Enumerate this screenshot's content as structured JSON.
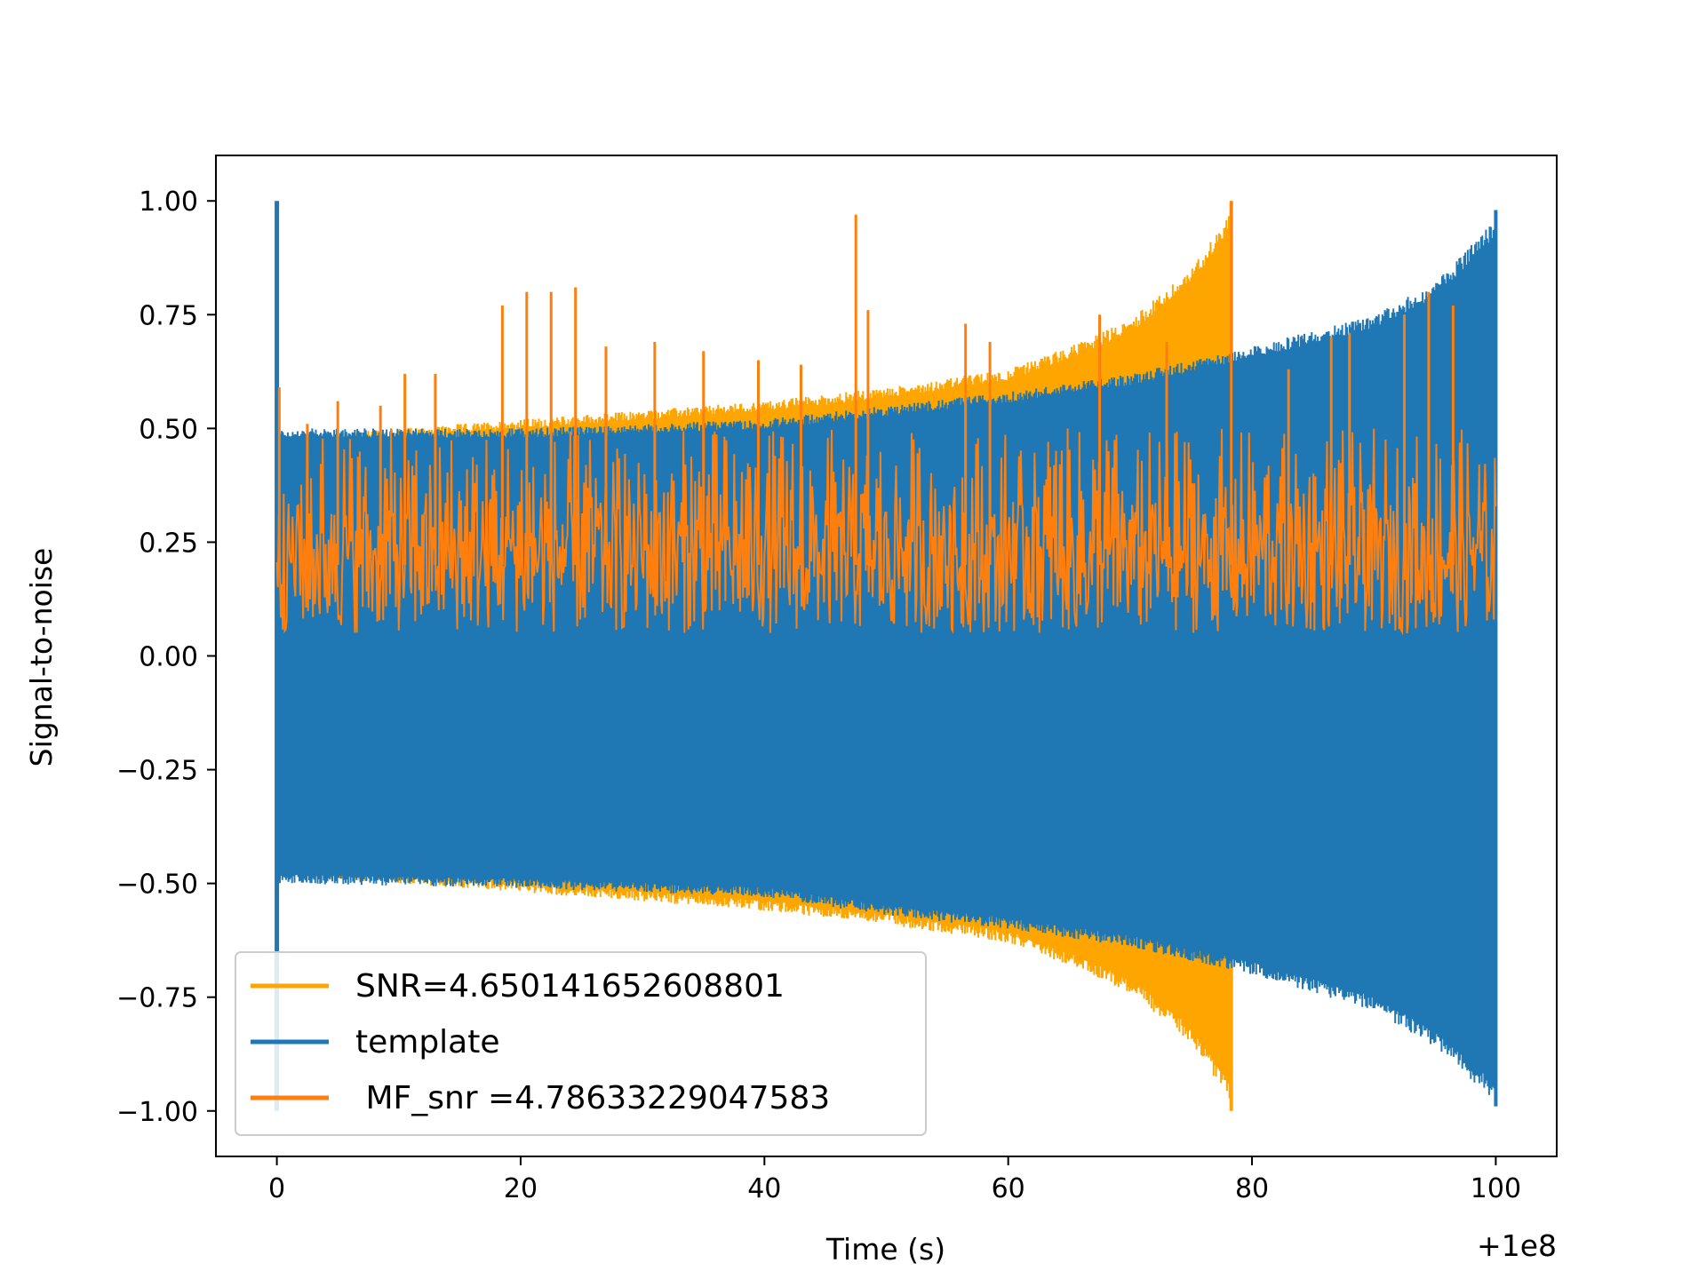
{
  "chart_data": {
    "type": "line",
    "title": "",
    "xlabel": "Time (s)",
    "ylabel": "Signal-to-noise",
    "x_offset_label": "+1e8",
    "xlim": [
      -5,
      105
    ],
    "ylim": [
      -1.1,
      1.1
    ],
    "xticks": [
      0,
      20,
      40,
      60,
      80,
      100
    ],
    "xtick_labels": [
      "0",
      "20",
      "40",
      "60",
      "80",
      "100"
    ],
    "yticks": [
      1.0,
      0.75,
      0.5,
      0.25,
      0.0,
      -0.25,
      -0.5,
      -0.75,
      -1.0
    ],
    "ytick_labels": [
      "1.00",
      "0.75",
      "0.50",
      "0.25",
      "0.00",
      "−0.25",
      "−0.50",
      "−0.75",
      "−1.00"
    ],
    "grid": false,
    "legend_position": "lower-left",
    "series": [
      {
        "name": "SNR=4.650141652608801",
        "color": "#ffa500",
        "style": "dense-oscillation",
        "envelope_upper": [
          [
            0,
            0.48
          ],
          [
            10,
            0.5
          ],
          [
            20,
            0.52
          ],
          [
            30,
            0.54
          ],
          [
            40,
            0.56
          ],
          [
            50,
            0.59
          ],
          [
            60,
            0.63
          ],
          [
            65,
            0.68
          ],
          [
            70,
            0.74
          ],
          [
            75,
            0.85
          ],
          [
            78.3,
            0.98
          ]
        ],
        "envelope_lower": [
          [
            0,
            -0.48
          ],
          [
            10,
            -0.5
          ],
          [
            20,
            -0.52
          ],
          [
            30,
            -0.54
          ],
          [
            40,
            -0.56
          ],
          [
            50,
            -0.59
          ],
          [
            60,
            -0.63
          ],
          [
            65,
            -0.68
          ],
          [
            70,
            -0.74
          ],
          [
            75,
            -0.85
          ],
          [
            78.3,
            -0.98
          ]
        ]
      },
      {
        "name": "template",
        "color": "#1f77b4",
        "style": "dense-oscillation",
        "envelope_upper": [
          [
            0,
            0.5
          ],
          [
            20,
            0.5
          ],
          [
            40,
            0.52
          ],
          [
            50,
            0.55
          ],
          [
            60,
            0.58
          ],
          [
            70,
            0.62
          ],
          [
            80,
            0.68
          ],
          [
            90,
            0.75
          ],
          [
            95,
            0.82
          ],
          [
            100,
            0.96
          ]
        ],
        "envelope_lower": [
          [
            0,
            -0.5
          ],
          [
            20,
            -0.51
          ],
          [
            40,
            -0.53
          ],
          [
            50,
            -0.57
          ],
          [
            60,
            -0.6
          ],
          [
            70,
            -0.64
          ],
          [
            80,
            -0.7
          ],
          [
            90,
            -0.78
          ],
          [
            95,
            -0.86
          ],
          [
            100,
            -0.98
          ]
        ]
      },
      {
        "name": " MF_snr =4.78633229047583",
        "color": "#ff7f0e",
        "style": "noise-band",
        "band_range": [
          0.05,
          0.5
        ],
        "peaks": [
          [
            0.2,
            0.59
          ],
          [
            2.5,
            0.51
          ],
          [
            5,
            0.56
          ],
          [
            8.5,
            0.55
          ],
          [
            10.5,
            0.62
          ],
          [
            13,
            0.62
          ],
          [
            18.5,
            0.77
          ],
          [
            20.5,
            0.8
          ],
          [
            22.5,
            0.8
          ],
          [
            24.5,
            0.81
          ],
          [
            27,
            0.68
          ],
          [
            31,
            0.69
          ],
          [
            35,
            0.67
          ],
          [
            39.5,
            0.65
          ],
          [
            43,
            0.64
          ],
          [
            47.5,
            0.97
          ],
          [
            48.5,
            0.76
          ],
          [
            56.5,
            0.73
          ],
          [
            58.5,
            0.69
          ],
          [
            67.5,
            0.75
          ],
          [
            73,
            0.69
          ],
          [
            78.3,
            1.0
          ],
          [
            83,
            0.63
          ],
          [
            86.5,
            0.7
          ],
          [
            88,
            0.71
          ],
          [
            92.5,
            0.75
          ],
          [
            94.5,
            0.8
          ],
          [
            96.5,
            0.77
          ]
        ]
      }
    ]
  }
}
